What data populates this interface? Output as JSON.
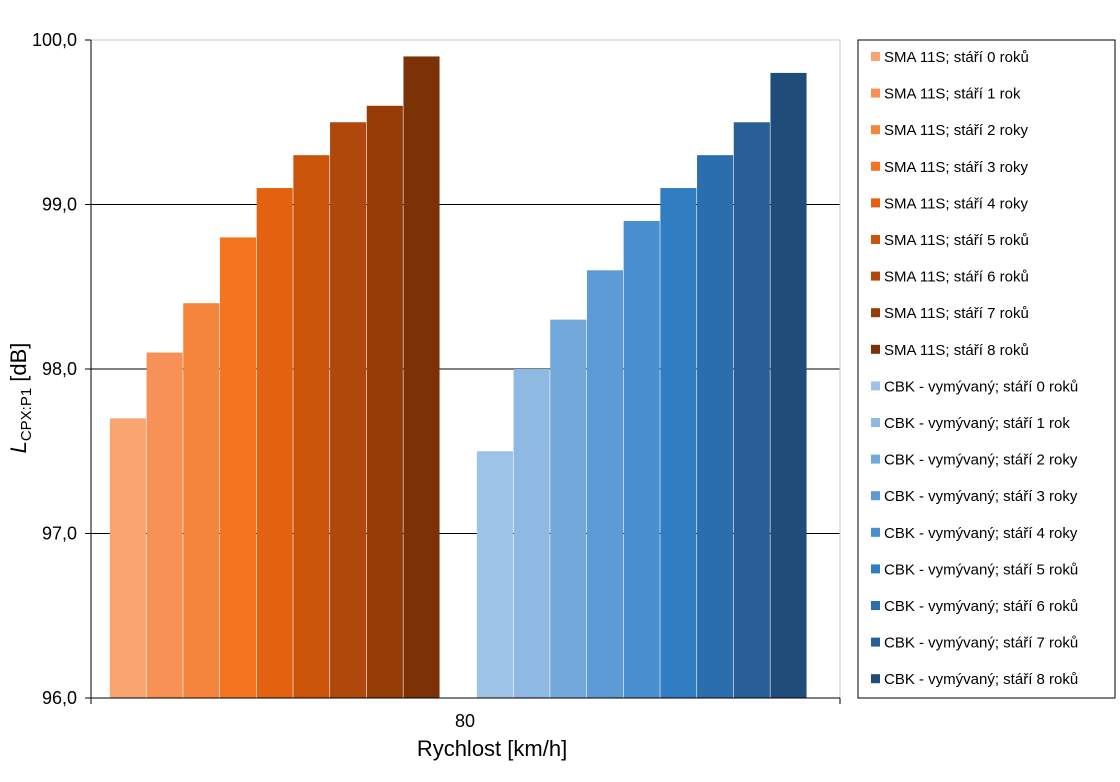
{
  "chart_data": {
    "type": "bar",
    "categories": [
      "80"
    ],
    "xlabel": "Rychlost [km/h]",
    "ylabel_main": "L",
    "ylabel_sub": "CPX:P1",
    "ylabel_unit": "[dB]",
    "ylim": [
      96.0,
      100.0
    ],
    "yticks": [
      "96,0",
      "97,0",
      "98,0",
      "99,0",
      "100,0"
    ],
    "ytick_values": [
      96.0,
      97.0,
      98.0,
      99.0,
      100.0
    ],
    "grid": true,
    "legend_position": "right",
    "series": [
      {
        "name": "SMA 11S; stáří 0 roků",
        "values": [
          97.7
        ],
        "color": "#F9A572"
      },
      {
        "name": "SMA 11S; stáří 1 rok",
        "values": [
          98.1
        ],
        "color": "#F79155"
      },
      {
        "name": "SMA 11S; stáří 2 roky",
        "values": [
          98.4
        ],
        "color": "#F5843D"
      },
      {
        "name": "SMA 11S; stáří 3 roky",
        "values": [
          98.8
        ],
        "color": "#F47420"
      },
      {
        "name": "SMA 11S; stáří 4 roky",
        "values": [
          99.1
        ],
        "color": "#E4620F"
      },
      {
        "name": "SMA 11S; stáří 5 roků",
        "values": [
          99.3
        ],
        "color": "#CB540B"
      },
      {
        "name": "SMA 11S; stáří 6 roků",
        "values": [
          99.5
        ],
        "color": "#B0480B"
      },
      {
        "name": "SMA 11S; stáří 7 roků",
        "values": [
          99.6
        ],
        "color": "#963C06"
      },
      {
        "name": "SMA 11S; stáří 8 roků",
        "values": [
          99.9
        ],
        "color": "#7A3206"
      },
      {
        "name": "CBK - vymývaný; stáří 0 roků",
        "values": [
          97.5
        ],
        "color": "#9DC3E6"
      },
      {
        "name": "CBK - vymývaný; stáří 1 rok",
        "values": [
          98.0
        ],
        "color": "#8DB9E2"
      },
      {
        "name": "CBK - vymývaný; stáří 2 roky",
        "values": [
          98.3
        ],
        "color": "#72A8DA"
      },
      {
        "name": "CBK - vymývaný; stáří 3 roky",
        "values": [
          98.6
        ],
        "color": "#5C9BD5"
      },
      {
        "name": "CBK - vymývaný; stáří 4 roky",
        "values": [
          98.9
        ],
        "color": "#4A8FD0"
      },
      {
        "name": "CBK - vymývaný; stáří 5 roků",
        "values": [
          99.1
        ],
        "color": "#307DC2"
      },
      {
        "name": "CBK - vymývaný; stáří 6 roků",
        "values": [
          99.3
        ],
        "color": "#2B6EAE"
      },
      {
        "name": "CBK - vymývaný; stáří 7 roků",
        "values": [
          99.5
        ],
        "color": "#285F96"
      },
      {
        "name": "CBK - vymývaný; stáří 8 roků",
        "values": [
          99.8
        ],
        "color": "#204C7A"
      }
    ]
  }
}
